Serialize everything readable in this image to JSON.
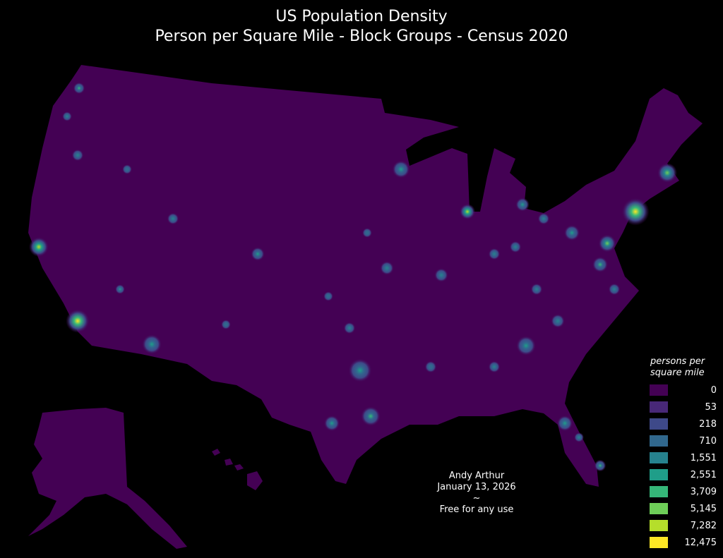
{
  "title": {
    "line1": "US Population Density",
    "line2": "Person per Square Mile - Block Groups - Census 2020"
  },
  "legend": {
    "title_line1": "persons per",
    "title_line2": "square mile",
    "items": [
      {
        "label": "0",
        "color": "#440154"
      },
      {
        "label": "53",
        "color": "#482878"
      },
      {
        "label": "218",
        "color": "#3e4989"
      },
      {
        "label": "710",
        "color": "#31688e"
      },
      {
        "label": "1,551",
        "color": "#26828e"
      },
      {
        "label": "2,551",
        "color": "#1f9e89"
      },
      {
        "label": "3,709",
        "color": "#35b779"
      },
      {
        "label": "5,145",
        "color": "#6ece58"
      },
      {
        "label": "7,282",
        "color": "#b5de2b"
      },
      {
        "label": "12,475",
        "color": "#fde725"
      }
    ]
  },
  "credit": {
    "author": "Andy Arthur",
    "date": "January 13, 2026",
    "separator": "~",
    "license": "Free for any use"
  },
  "map": {
    "background": "#000000",
    "land_color": "#440154",
    "regions": [
      "Contiguous US",
      "Alaska",
      "Hawaii"
    ]
  }
}
